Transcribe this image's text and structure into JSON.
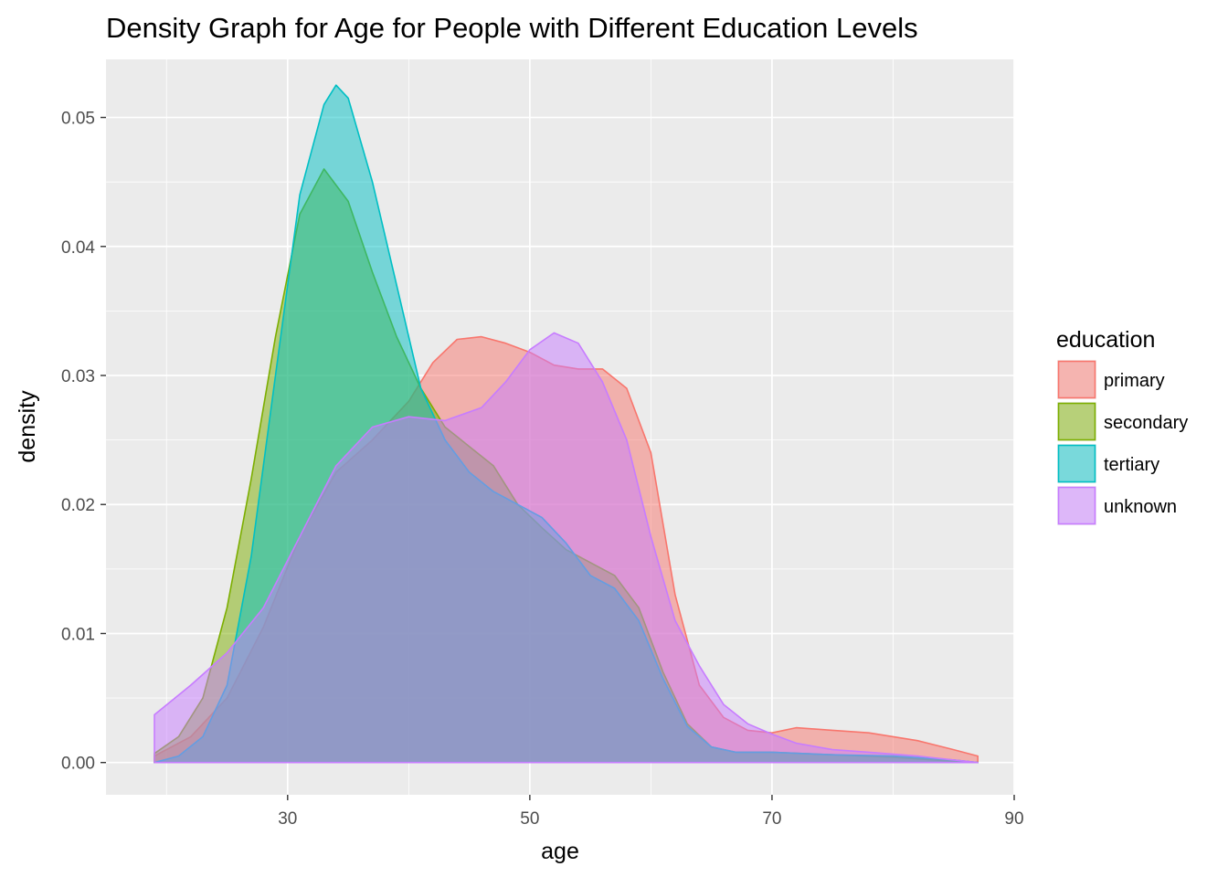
{
  "chart_data": {
    "type": "area",
    "title": "Density Graph for Age for People with Different Education Levels",
    "xlabel": "age",
    "ylabel": "density",
    "xlim": [
      15,
      90
    ],
    "ylim": [
      -0.0025,
      0.0545
    ],
    "x_ticks": [
      30,
      50,
      70,
      90
    ],
    "y_ticks": [
      0.0,
      0.01,
      0.02,
      0.03,
      0.04,
      0.05
    ],
    "y_tick_labels": [
      "0.00",
      "0.01",
      "0.02",
      "0.03",
      "0.04",
      "0.05"
    ],
    "grid": true,
    "legend": {
      "title": "education",
      "position": "right"
    },
    "series": [
      {
        "name": "primary",
        "color": "#F8766D",
        "points": [
          [
            19,
            0.0005
          ],
          [
            22,
            0.002
          ],
          [
            25,
            0.005
          ],
          [
            28,
            0.0105
          ],
          [
            31,
            0.0175
          ],
          [
            34,
            0.0225
          ],
          [
            37,
            0.025
          ],
          [
            40,
            0.028
          ],
          [
            42,
            0.031
          ],
          [
            44,
            0.0328
          ],
          [
            46,
            0.033
          ],
          [
            48,
            0.0325
          ],
          [
            50,
            0.0318
          ],
          [
            52,
            0.0308
          ],
          [
            54,
            0.0305
          ],
          [
            56,
            0.0305
          ],
          [
            58,
            0.029
          ],
          [
            60,
            0.024
          ],
          [
            62,
            0.013
          ],
          [
            64,
            0.006
          ],
          [
            66,
            0.0035
          ],
          [
            68,
            0.0025
          ],
          [
            70,
            0.0023
          ],
          [
            72,
            0.0027
          ],
          [
            75,
            0.0025
          ],
          [
            78,
            0.0023
          ],
          [
            80,
            0.002
          ],
          [
            82,
            0.0017
          ],
          [
            85,
            0.001
          ],
          [
            87,
            0.0005
          ]
        ]
      },
      {
        "name": "secondary",
        "color": "#7CAE00",
        "points": [
          [
            19,
            0.0007
          ],
          [
            21,
            0.002
          ],
          [
            23,
            0.005
          ],
          [
            25,
            0.012
          ],
          [
            27,
            0.022
          ],
          [
            29,
            0.033
          ],
          [
            31,
            0.0425
          ],
          [
            33,
            0.046
          ],
          [
            35,
            0.0435
          ],
          [
            37,
            0.038
          ],
          [
            39,
            0.033
          ],
          [
            41,
            0.029
          ],
          [
            43,
            0.026
          ],
          [
            45,
            0.0245
          ],
          [
            47,
            0.023
          ],
          [
            49,
            0.02
          ],
          [
            51,
            0.0182
          ],
          [
            53,
            0.0165
          ],
          [
            55,
            0.0155
          ],
          [
            57,
            0.0145
          ],
          [
            59,
            0.012
          ],
          [
            61,
            0.007
          ],
          [
            63,
            0.003
          ],
          [
            65,
            0.0012
          ],
          [
            67,
            0.0008
          ],
          [
            70,
            0.0008
          ],
          [
            75,
            0.0006
          ],
          [
            80,
            0.0004
          ],
          [
            85,
            0.0001
          ],
          [
            87,
            0
          ]
        ]
      },
      {
        "name": "tertiary",
        "color": "#00BFC4",
        "points": [
          [
            19,
            0
          ],
          [
            21,
            0.0005
          ],
          [
            23,
            0.002
          ],
          [
            25,
            0.006
          ],
          [
            27,
            0.016
          ],
          [
            29,
            0.03
          ],
          [
            31,
            0.044
          ],
          [
            33,
            0.051
          ],
          [
            34,
            0.0525
          ],
          [
            35,
            0.0515
          ],
          [
            37,
            0.045
          ],
          [
            39,
            0.037
          ],
          [
            41,
            0.029
          ],
          [
            43,
            0.025
          ],
          [
            45,
            0.0225
          ],
          [
            47,
            0.021
          ],
          [
            49,
            0.02
          ],
          [
            51,
            0.019
          ],
          [
            53,
            0.017
          ],
          [
            55,
            0.0145
          ],
          [
            57,
            0.0135
          ],
          [
            59,
            0.011
          ],
          [
            61,
            0.0065
          ],
          [
            63,
            0.0028
          ],
          [
            65,
            0.0012
          ],
          [
            67,
            0.0008
          ],
          [
            70,
            0.0008
          ],
          [
            75,
            0.0006
          ],
          [
            80,
            0.0005
          ],
          [
            85,
            0.0002
          ],
          [
            87,
            0
          ]
        ]
      },
      {
        "name": "unknown",
        "color": "#C77CFF",
        "points": [
          [
            19,
            0.0037
          ],
          [
            22,
            0.006
          ],
          [
            25,
            0.0085
          ],
          [
            28,
            0.012
          ],
          [
            31,
            0.0175
          ],
          [
            34,
            0.023
          ],
          [
            37,
            0.026
          ],
          [
            40,
            0.0268
          ],
          [
            43,
            0.0265
          ],
          [
            46,
            0.0275
          ],
          [
            48,
            0.0295
          ],
          [
            50,
            0.032
          ],
          [
            52,
            0.0333
          ],
          [
            54,
            0.0325
          ],
          [
            56,
            0.0295
          ],
          [
            58,
            0.025
          ],
          [
            60,
            0.0175
          ],
          [
            62,
            0.011
          ],
          [
            64,
            0.0075
          ],
          [
            66,
            0.0045
          ],
          [
            68,
            0.003
          ],
          [
            70,
            0.0022
          ],
          [
            72,
            0.0015
          ],
          [
            75,
            0.001
          ],
          [
            78,
            0.0008
          ],
          [
            82,
            0.0005
          ],
          [
            87,
            0
          ]
        ]
      }
    ]
  }
}
